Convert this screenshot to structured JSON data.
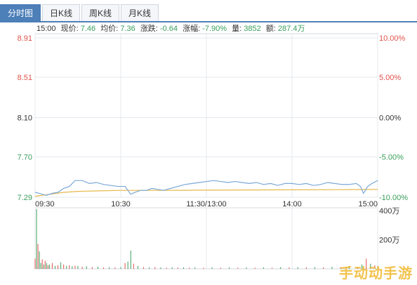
{
  "tabs": [
    {
      "label": "分时图",
      "active": true
    },
    {
      "label": "日K线",
      "active": false
    },
    {
      "label": "周K线",
      "active": false
    },
    {
      "label": "月K线",
      "active": false
    }
  ],
  "info": {
    "time": "15:00",
    "price_label": "现价:",
    "price_value": "7.46",
    "avg_label": "均价:",
    "avg_value": "7.36",
    "change_label": "涨跌:",
    "change_value": "-0.64",
    "pct_label": "涨幅:",
    "pct_value": "-7.90%",
    "vol_label": "量:",
    "vol_value": "3852",
    "amt_label": "额:",
    "amt_value": "287.4万"
  },
  "watermark": "手动动手游",
  "colors": {
    "up": "#e0524a",
    "down": "#3a9e5c",
    "price_line": "#7aa8d8",
    "avg_line": "#e6b84a",
    "neutral": "#333333"
  },
  "chart_data": {
    "type": "line",
    "ylim": [
      7.29,
      8.91
    ],
    "y_ticks": [
      {
        "label": "8.91",
        "value": 8.91,
        "tone": "up"
      },
      {
        "label": "8.51",
        "value": 8.51,
        "tone": "up"
      },
      {
        "label": "8.10",
        "value": 8.1,
        "tone": "neutral"
      },
      {
        "label": "7.70",
        "value": 7.7,
        "tone": "down"
      },
      {
        "label": "7.29",
        "value": 7.29,
        "tone": "down"
      }
    ],
    "pct_ticks": [
      {
        "label": "10.00%",
        "value": 8.91,
        "tone": "up"
      },
      {
        "label": "5.00%",
        "value": 8.51,
        "tone": "up"
      },
      {
        "label": "0.00%",
        "value": 8.1,
        "tone": "neutral"
      },
      {
        "label": "-5.00%",
        "value": 7.7,
        "tone": "down"
      },
      {
        "label": "-10.00%",
        "value": 7.29,
        "tone": "down"
      }
    ],
    "x_ticks": [
      {
        "label": "09:30",
        "t": 0
      },
      {
        "label": "10:30",
        "t": 60
      },
      {
        "label": "11:30/13:00",
        "t": 120
      },
      {
        "label": "14:00",
        "t": 180
      },
      {
        "label": "15:00",
        "t": 240
      }
    ],
    "price": [
      [
        0,
        7.34
      ],
      [
        3,
        7.33
      ],
      [
        5,
        7.32
      ],
      [
        8,
        7.31
      ],
      [
        12,
        7.33
      ],
      [
        16,
        7.34
      ],
      [
        20,
        7.38
      ],
      [
        24,
        7.4
      ],
      [
        28,
        7.46
      ],
      [
        33,
        7.46
      ],
      [
        38,
        7.43
      ],
      [
        43,
        7.44
      ],
      [
        48,
        7.42
      ],
      [
        53,
        7.41
      ],
      [
        58,
        7.4
      ],
      [
        60,
        7.4
      ],
      [
        63,
        7.4
      ],
      [
        67,
        7.32
      ],
      [
        70,
        7.34
      ],
      [
        74,
        7.36
      ],
      [
        78,
        7.36
      ],
      [
        82,
        7.38
      ],
      [
        86,
        7.37
      ],
      [
        90,
        7.36
      ],
      [
        95,
        7.38
      ],
      [
        100,
        7.4
      ],
      [
        105,
        7.42
      ],
      [
        110,
        7.43
      ],
      [
        115,
        7.44
      ],
      [
        120,
        7.45
      ],
      [
        125,
        7.46
      ],
      [
        130,
        7.45
      ],
      [
        135,
        7.44
      ],
      [
        140,
        7.45
      ],
      [
        145,
        7.44
      ],
      [
        150,
        7.43
      ],
      [
        155,
        7.44
      ],
      [
        160,
        7.42
      ],
      [
        165,
        7.43
      ],
      [
        170,
        7.41
      ],
      [
        175,
        7.43
      ],
      [
        180,
        7.43
      ],
      [
        185,
        7.42
      ],
      [
        190,
        7.43
      ],
      [
        195,
        7.41
      ],
      [
        200,
        7.42
      ],
      [
        205,
        7.44
      ],
      [
        210,
        7.43
      ],
      [
        215,
        7.42
      ],
      [
        220,
        7.42
      ],
      [
        225,
        7.43
      ],
      [
        228,
        7.4
      ],
      [
        230,
        7.33
      ],
      [
        233,
        7.4
      ],
      [
        236,
        7.43
      ],
      [
        240,
        7.46
      ]
    ],
    "avg": [
      [
        0,
        7.3
      ],
      [
        10,
        7.32
      ],
      [
        20,
        7.34
      ],
      [
        30,
        7.35
      ],
      [
        45,
        7.355
      ],
      [
        60,
        7.36
      ],
      [
        90,
        7.36
      ],
      [
        120,
        7.362
      ],
      [
        150,
        7.364
      ],
      [
        180,
        7.366
      ],
      [
        210,
        7.367
      ],
      [
        240,
        7.37
      ]
    ],
    "volume_ticks": [
      {
        "label": "400万",
        "value": 400
      },
      {
        "label": "200万",
        "value": 200
      }
    ],
    "volume_max": 400,
    "volume": [
      [
        0,
        70,
        "up"
      ],
      [
        1,
        410,
        "down"
      ],
      [
        2,
        170,
        "up"
      ],
      [
        3,
        120,
        "down"
      ],
      [
        4,
        40,
        "down"
      ],
      [
        5,
        65,
        "up"
      ],
      [
        6,
        30,
        "down"
      ],
      [
        7,
        55,
        "up"
      ],
      [
        8,
        40,
        "down"
      ],
      [
        9,
        25,
        "up"
      ],
      [
        10,
        30,
        "down"
      ],
      [
        12,
        40,
        "up"
      ],
      [
        14,
        20,
        "down"
      ],
      [
        16,
        25,
        "up"
      ],
      [
        18,
        45,
        "down"
      ],
      [
        20,
        30,
        "up"
      ],
      [
        22,
        20,
        "down"
      ],
      [
        24,
        25,
        "up"
      ],
      [
        26,
        18,
        "down"
      ],
      [
        28,
        22,
        "up"
      ],
      [
        30,
        20,
        "down"
      ],
      [
        33,
        15,
        "up"
      ],
      [
        36,
        18,
        "down"
      ],
      [
        40,
        12,
        "up"
      ],
      [
        44,
        15,
        "down"
      ],
      [
        48,
        10,
        "up"
      ],
      [
        52,
        12,
        "down"
      ],
      [
        56,
        10,
        "up"
      ],
      [
        60,
        12,
        "down"
      ],
      [
        63,
        40,
        "up"
      ],
      [
        65,
        50,
        "down"
      ],
      [
        67,
        125,
        "down"
      ],
      [
        69,
        35,
        "up"
      ],
      [
        72,
        20,
        "down"
      ],
      [
        76,
        12,
        "up"
      ],
      [
        80,
        10,
        "down"
      ],
      [
        84,
        12,
        "up"
      ],
      [
        88,
        10,
        "down"
      ],
      [
        92,
        8,
        "up"
      ],
      [
        96,
        10,
        "down"
      ],
      [
        100,
        8,
        "up"
      ],
      [
        104,
        10,
        "down"
      ],
      [
        108,
        8,
        "up"
      ],
      [
        112,
        10,
        "down"
      ],
      [
        118,
        8,
        "up"
      ],
      [
        124,
        10,
        "down"
      ],
      [
        130,
        8,
        "up"
      ],
      [
        136,
        10,
        "down"
      ],
      [
        142,
        8,
        "up"
      ],
      [
        148,
        10,
        "down"
      ],
      [
        154,
        8,
        "up"
      ],
      [
        160,
        10,
        "down"
      ],
      [
        166,
        8,
        "up"
      ],
      [
        172,
        12,
        "down"
      ],
      [
        178,
        10,
        "up"
      ],
      [
        184,
        12,
        "down"
      ],
      [
        190,
        10,
        "up"
      ],
      [
        196,
        12,
        "down"
      ],
      [
        202,
        10,
        "up"
      ],
      [
        208,
        14,
        "down"
      ],
      [
        214,
        12,
        "up"
      ],
      [
        220,
        15,
        "down"
      ],
      [
        226,
        12,
        "up"
      ],
      [
        229,
        30,
        "down"
      ],
      [
        232,
        70,
        "up"
      ],
      [
        235,
        35,
        "down"
      ],
      [
        238,
        25,
        "up"
      ],
      [
        240,
        20,
        "down"
      ]
    ]
  }
}
